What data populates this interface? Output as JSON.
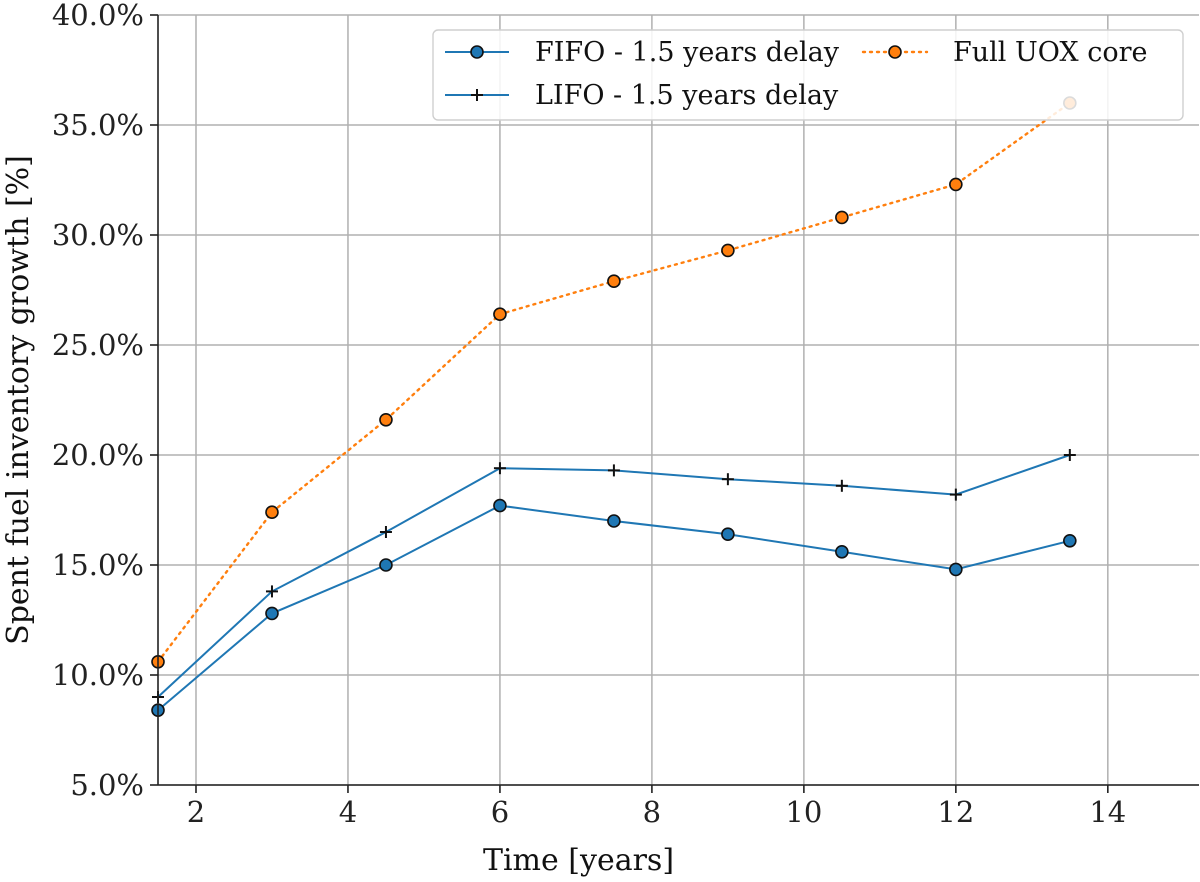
{
  "chart_data": {
    "type": "line",
    "xlabel": "Time [years]",
    "ylabel": "Spent fuel inventory growth [%]",
    "xlim": [
      1.5,
      15.2
    ],
    "ylim": [
      5.0,
      40.0
    ],
    "xticks": [
      2,
      4,
      6,
      8,
      10,
      12,
      14
    ],
    "yticks": [
      5.0,
      10.0,
      15.0,
      20.0,
      25.0,
      30.0,
      35.0,
      40.0
    ],
    "xtick_labels": [
      "2",
      "4",
      "6",
      "8",
      "10",
      "12",
      "14"
    ],
    "ytick_labels": [
      "5.0%",
      "10.0%",
      "15.0%",
      "20.0%",
      "25.0%",
      "30.0%",
      "35.0%",
      "40.0%"
    ],
    "grid": true,
    "legend_position": "top-right",
    "x": [
      1.5,
      3.0,
      4.5,
      6.0,
      7.5,
      9.0,
      10.5,
      12.0,
      13.5
    ],
    "series": [
      {
        "name": "FIFO - 1.5 years delay",
        "values": [
          8.4,
          12.8,
          15.0,
          17.7,
          17.0,
          16.4,
          15.6,
          14.8,
          16.1
        ],
        "color": "#1f77b4",
        "marker": "circle",
        "line_style": "solid"
      },
      {
        "name": "LIFO - 1.5 years delay",
        "values": [
          9.0,
          13.8,
          16.5,
          19.4,
          19.3,
          18.9,
          18.6,
          18.2,
          20.0
        ],
        "color": "#1f77b4",
        "marker": "plus",
        "line_style": "solid"
      },
      {
        "name": "Full UOX core",
        "values": [
          10.6,
          17.4,
          21.6,
          26.4,
          27.9,
          29.3,
          30.8,
          32.3,
          36.0
        ],
        "color": "#ff7f0e",
        "marker": "circle",
        "line_style": "dotted"
      }
    ]
  }
}
